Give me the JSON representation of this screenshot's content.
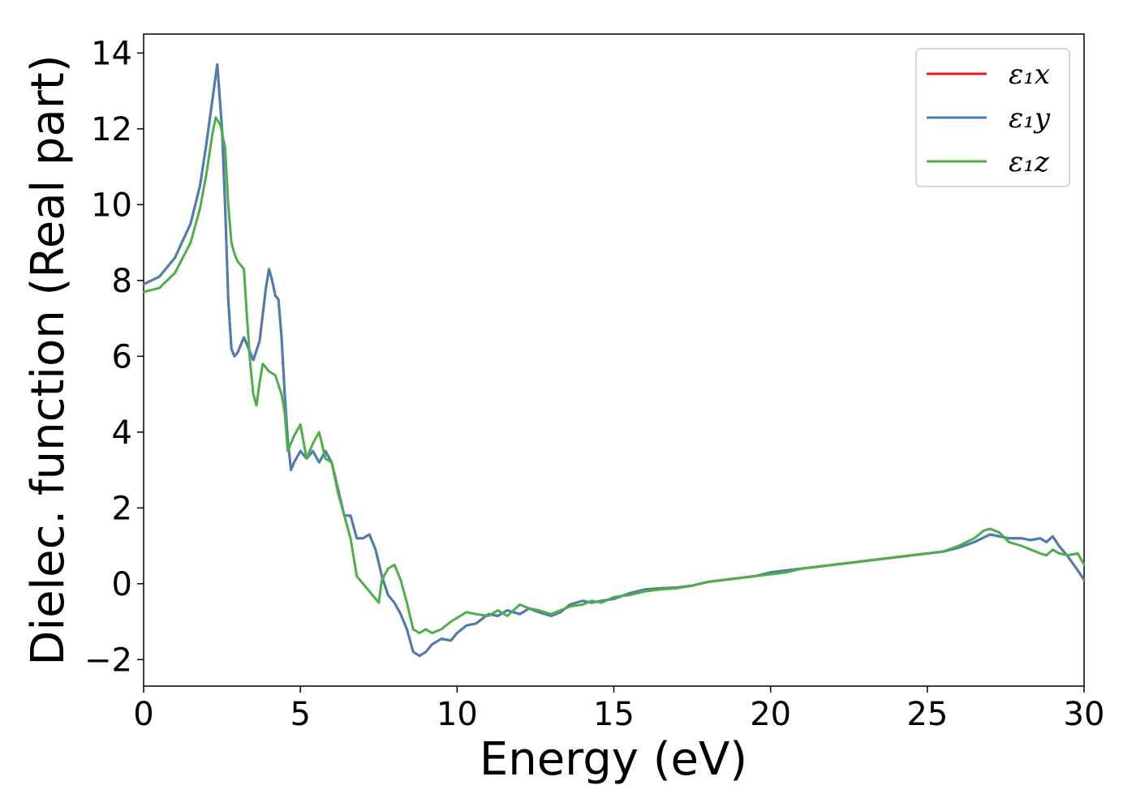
{
  "chart_data": {
    "type": "line",
    "xlabel": "Energy (eV)",
    "ylabel": "Dielec. function (Real part)",
    "xlim": [
      0,
      30
    ],
    "ylim": [
      -2.7,
      14.5
    ],
    "xticks": [
      0,
      5,
      10,
      15,
      20,
      25,
      30
    ],
    "yticks": [
      -2,
      0,
      2,
      4,
      6,
      8,
      10,
      12,
      14
    ],
    "xtick_labels": [
      "0",
      "5",
      "10",
      "15",
      "20",
      "25",
      "30"
    ],
    "ytick_labels": [
      "−2",
      "0",
      "2",
      "4",
      "6",
      "8",
      "10",
      "12",
      "14"
    ],
    "grid": false,
    "legend_position": "upper right",
    "series": [
      {
        "name": "ε₁x",
        "color": "#e41a1c",
        "x": [
          0,
          0.5,
          1.0,
          1.5,
          1.8,
          2.0,
          2.2,
          2.35,
          2.5,
          2.6,
          2.7,
          2.8,
          2.9,
          3.0,
          3.2,
          3.3,
          3.5,
          3.7,
          3.9,
          4.0,
          4.1,
          4.2,
          4.3,
          4.4,
          4.5,
          4.6,
          4.7,
          4.8,
          5.0,
          5.2,
          5.4,
          5.6,
          5.8,
          6.0,
          6.2,
          6.4,
          6.6,
          6.8,
          7.0,
          7.2,
          7.4,
          7.6,
          7.8,
          8.0,
          8.2,
          8.4,
          8.6,
          8.8,
          9.0,
          9.2,
          9.5,
          9.8,
          10.0,
          10.3,
          10.6,
          11.0,
          11.3,
          11.6,
          12.0,
          12.3,
          12.6,
          13.0,
          13.3,
          13.6,
          14.0,
          14.3,
          14.6,
          15.0,
          15.5,
          16.0,
          16.5,
          17.0,
          17.5,
          18.0,
          18.5,
          19.0,
          19.5,
          20.0,
          20.5,
          21.0,
          21.5,
          22.0,
          22.5,
          23.0,
          23.5,
          24.0,
          24.5,
          25.0,
          25.5,
          26.0,
          26.5,
          27.0,
          27.3,
          27.6,
          28.0,
          28.3,
          28.6,
          28.8,
          29.0,
          29.2,
          29.5,
          29.8,
          30.0
        ],
        "y": [
          7.9,
          8.1,
          8.6,
          9.5,
          10.5,
          11.6,
          12.8,
          13.7,
          12.0,
          10.0,
          7.5,
          6.2,
          6.0,
          6.1,
          6.5,
          6.3,
          5.9,
          6.4,
          7.8,
          8.3,
          8.0,
          7.6,
          7.5,
          6.5,
          5.0,
          3.8,
          3.0,
          3.2,
          3.5,
          3.3,
          3.5,
          3.2,
          3.5,
          3.2,
          2.5,
          1.8,
          1.8,
          1.2,
          1.2,
          1.3,
          0.9,
          0.2,
          -0.3,
          -0.5,
          -0.8,
          -1.2,
          -1.8,
          -1.9,
          -1.8,
          -1.6,
          -1.45,
          -1.5,
          -1.3,
          -1.1,
          -1.05,
          -0.8,
          -0.85,
          -0.7,
          -0.8,
          -0.65,
          -0.75,
          -0.85,
          -0.75,
          -0.55,
          -0.45,
          -0.5,
          -0.45,
          -0.4,
          -0.25,
          -0.15,
          -0.12,
          -0.1,
          -0.05,
          0.05,
          0.1,
          0.15,
          0.2,
          0.3,
          0.35,
          0.4,
          0.45,
          0.5,
          0.55,
          0.6,
          0.65,
          0.7,
          0.75,
          0.8,
          0.85,
          0.95,
          1.1,
          1.3,
          1.25,
          1.2,
          1.2,
          1.15,
          1.2,
          1.1,
          1.25,
          1.0,
          0.7,
          0.35,
          0.1
        ]
      },
      {
        "name": "ε₁y",
        "color": "#4a7fb5",
        "x": [
          0,
          0.5,
          1.0,
          1.5,
          1.8,
          2.0,
          2.2,
          2.35,
          2.5,
          2.6,
          2.7,
          2.8,
          2.9,
          3.0,
          3.2,
          3.3,
          3.5,
          3.7,
          3.9,
          4.0,
          4.1,
          4.2,
          4.3,
          4.4,
          4.5,
          4.6,
          4.7,
          4.8,
          5.0,
          5.2,
          5.4,
          5.6,
          5.8,
          6.0,
          6.2,
          6.4,
          6.6,
          6.8,
          7.0,
          7.2,
          7.4,
          7.6,
          7.8,
          8.0,
          8.2,
          8.4,
          8.6,
          8.8,
          9.0,
          9.2,
          9.5,
          9.8,
          10.0,
          10.3,
          10.6,
          11.0,
          11.3,
          11.6,
          12.0,
          12.3,
          12.6,
          13.0,
          13.3,
          13.6,
          14.0,
          14.3,
          14.6,
          15.0,
          15.5,
          16.0,
          16.5,
          17.0,
          17.5,
          18.0,
          18.5,
          19.0,
          19.5,
          20.0,
          20.5,
          21.0,
          21.5,
          22.0,
          22.5,
          23.0,
          23.5,
          24.0,
          24.5,
          25.0,
          25.5,
          26.0,
          26.5,
          27.0,
          27.3,
          27.6,
          28.0,
          28.3,
          28.6,
          28.8,
          29.0,
          29.2,
          29.5,
          29.8,
          30.0
        ],
        "y": [
          7.9,
          8.1,
          8.6,
          9.5,
          10.5,
          11.6,
          12.8,
          13.7,
          12.0,
          10.0,
          7.5,
          6.2,
          6.0,
          6.1,
          6.5,
          6.3,
          5.9,
          6.4,
          7.8,
          8.3,
          8.0,
          7.6,
          7.5,
          6.5,
          5.0,
          3.8,
          3.0,
          3.2,
          3.5,
          3.3,
          3.5,
          3.2,
          3.5,
          3.2,
          2.5,
          1.8,
          1.8,
          1.2,
          1.2,
          1.3,
          0.9,
          0.2,
          -0.3,
          -0.5,
          -0.8,
          -1.2,
          -1.8,
          -1.9,
          -1.8,
          -1.6,
          -1.45,
          -1.5,
          -1.3,
          -1.1,
          -1.05,
          -0.8,
          -0.85,
          -0.7,
          -0.8,
          -0.65,
          -0.75,
          -0.85,
          -0.75,
          -0.55,
          -0.45,
          -0.5,
          -0.45,
          -0.4,
          -0.25,
          -0.15,
          -0.12,
          -0.1,
          -0.05,
          0.05,
          0.1,
          0.15,
          0.2,
          0.3,
          0.35,
          0.4,
          0.45,
          0.5,
          0.55,
          0.6,
          0.65,
          0.7,
          0.75,
          0.8,
          0.85,
          0.95,
          1.1,
          1.3,
          1.25,
          1.2,
          1.2,
          1.15,
          1.2,
          1.1,
          1.25,
          1.0,
          0.7,
          0.35,
          0.1
        ]
      },
      {
        "name": "ε₁z",
        "color": "#4daf4a",
        "x": [
          0,
          0.5,
          1.0,
          1.5,
          1.8,
          2.0,
          2.2,
          2.3,
          2.45,
          2.6,
          2.7,
          2.8,
          2.9,
          3.0,
          3.1,
          3.2,
          3.3,
          3.4,
          3.5,
          3.6,
          3.7,
          3.8,
          3.9,
          4.0,
          4.2,
          4.4,
          4.5,
          4.6,
          4.8,
          5.0,
          5.2,
          5.4,
          5.6,
          5.8,
          6.0,
          6.2,
          6.4,
          6.6,
          6.8,
          7.0,
          7.2,
          7.4,
          7.5,
          7.6,
          7.8,
          8.0,
          8.2,
          8.4,
          8.6,
          8.8,
          9.0,
          9.2,
          9.5,
          9.8,
          10.0,
          10.3,
          10.6,
          11.0,
          11.3,
          11.6,
          12.0,
          12.3,
          12.6,
          13.0,
          13.3,
          13.6,
          14.0,
          14.3,
          14.6,
          15.0,
          15.5,
          16.0,
          16.5,
          17.0,
          17.5,
          18.0,
          18.5,
          19.0,
          19.5,
          20.0,
          20.5,
          21.0,
          21.5,
          22.0,
          22.5,
          23.0,
          23.5,
          24.0,
          24.5,
          25.0,
          25.5,
          26.0,
          26.5,
          26.8,
          27.0,
          27.3,
          27.6,
          28.0,
          28.3,
          28.6,
          28.8,
          29.0,
          29.2,
          29.5,
          29.8,
          30.0
        ],
        "y": [
          7.7,
          7.8,
          8.2,
          9.0,
          9.9,
          10.8,
          11.9,
          12.3,
          12.1,
          11.5,
          10.0,
          9.0,
          8.7,
          8.5,
          8.4,
          8.3,
          7.0,
          5.8,
          5.0,
          4.7,
          5.3,
          5.8,
          5.7,
          5.6,
          5.5,
          5.0,
          4.5,
          3.5,
          3.9,
          4.2,
          3.3,
          3.7,
          4.0,
          3.3,
          3.2,
          2.4,
          1.8,
          1.2,
          0.2,
          0.0,
          -0.2,
          -0.4,
          -0.5,
          0.1,
          0.4,
          0.5,
          0.1,
          -0.5,
          -1.2,
          -1.3,
          -1.2,
          -1.3,
          -1.2,
          -1.0,
          -0.9,
          -0.75,
          -0.8,
          -0.85,
          -0.7,
          -0.85,
          -0.55,
          -0.65,
          -0.7,
          -0.8,
          -0.7,
          -0.6,
          -0.55,
          -0.45,
          -0.5,
          -0.35,
          -0.3,
          -0.2,
          -0.15,
          -0.12,
          -0.05,
          0.05,
          0.1,
          0.15,
          0.2,
          0.25,
          0.3,
          0.4,
          0.45,
          0.5,
          0.55,
          0.6,
          0.65,
          0.7,
          0.75,
          0.8,
          0.85,
          1.0,
          1.2,
          1.4,
          1.45,
          1.35,
          1.1,
          1.0,
          0.9,
          0.8,
          0.75,
          0.9,
          0.8,
          0.75,
          0.8,
          0.5
        ]
      }
    ]
  }
}
